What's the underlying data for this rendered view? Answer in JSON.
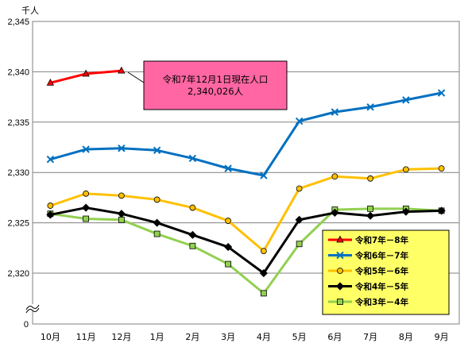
{
  "chart_data": {
    "type": "line",
    "unit_label": "千人",
    "categories": [
      "10月",
      "11月",
      "12月",
      "1月",
      "2月",
      "3月",
      "4月",
      "5月",
      "6月",
      "7月",
      "8月",
      "9月"
    ],
    "y_ticks": [
      "2,345",
      "2,340",
      "2,335",
      "2,330",
      "2,325",
      "2,320"
    ],
    "y_zero_label": "0",
    "ylim": [
      2317,
      2345
    ],
    "y_axis_break": true,
    "grid": true,
    "legend_position": "bottom-right",
    "series": [
      {
        "name": "令和7年－8年",
        "color": "#ff0000",
        "marker": "triangle",
        "values": [
          2338.9,
          2339.8,
          2340.1,
          null,
          null,
          null,
          null,
          null,
          null,
          null,
          null,
          null
        ]
      },
      {
        "name": "令和6年－7年",
        "color": "#0070c0",
        "marker": "x",
        "values": [
          2331.3,
          2332.3,
          2332.4,
          2332.2,
          2331.4,
          2330.4,
          2329.7,
          2335.1,
          2336.0,
          2336.5,
          2337.2,
          2337.9
        ]
      },
      {
        "name": "令和5年－6年",
        "color": "#ffc000",
        "marker": "circle",
        "values": [
          2326.7,
          2327.9,
          2327.7,
          2327.3,
          2326.5,
          2325.2,
          2322.2,
          2328.4,
          2329.6,
          2329.4,
          2330.3,
          2330.4
        ]
      },
      {
        "name": "令和4年－5年",
        "color": "#000000",
        "marker": "diamond",
        "values": [
          2325.8,
          2326.5,
          2325.9,
          2325.0,
          2323.8,
          2322.6,
          2320.0,
          2325.3,
          2326.0,
          2325.7,
          2326.1,
          2326.2
        ]
      },
      {
        "name": "令和3年－4年",
        "color": "#92d050",
        "marker": "square",
        "values": [
          2325.9,
          2325.4,
          2325.3,
          2323.9,
          2322.7,
          2320.9,
          2318.0,
          2322.9,
          2326.3,
          2326.4,
          2326.4,
          2326.2
        ]
      }
    ],
    "annotation": {
      "line1": "令和7年12月1日現在人口",
      "line2": "2,340,026人",
      "fill": "#ff66a3"
    },
    "legend_fill": "#ffff66"
  }
}
